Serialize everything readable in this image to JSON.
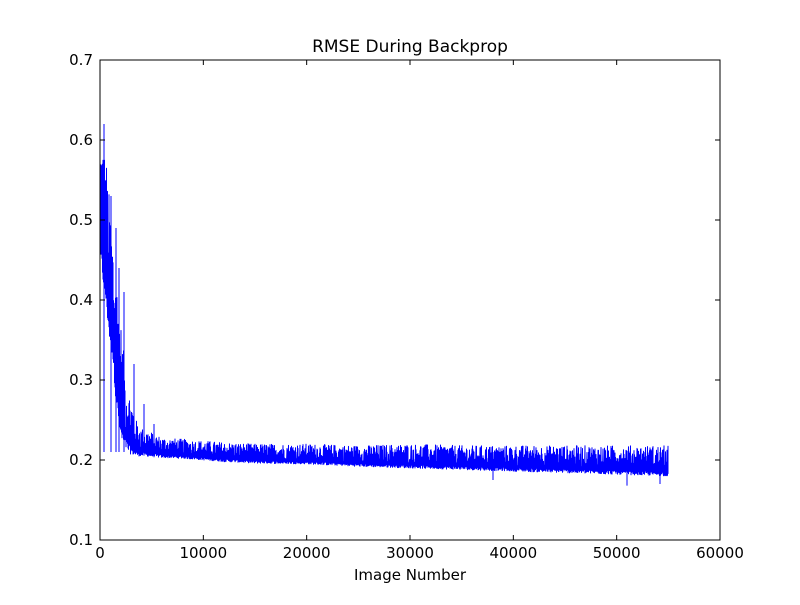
{
  "chart_data": {
    "type": "line",
    "title": "RMSE During Backprop",
    "xlabel": "Image Number",
    "ylabel": "",
    "xlim": [
      0,
      60000
    ],
    "ylim": [
      0.1,
      0.7
    ],
    "xticks": [
      0,
      10000,
      20000,
      30000,
      40000,
      50000,
      60000
    ],
    "xtick_labels": [
      "0",
      "10000",
      "20000",
      "30000",
      "40000",
      "50000",
      "60000"
    ],
    "yticks": [
      0.1,
      0.2,
      0.3,
      0.4,
      0.5,
      0.6,
      0.7
    ],
    "ytick_labels": [
      "0.1",
      "0.2",
      "0.3",
      "0.4",
      "0.5",
      "0.6",
      "0.7"
    ],
    "grid": false,
    "legend": "none",
    "series": [
      {
        "color": "#0000ff",
        "x_range": [
          0,
          55000
        ],
        "envelope": {
          "x": [
            0,
            300,
            600,
            900,
            1200,
            1500,
            1800,
            2100,
            2400,
            2700,
            3000,
            3500,
            4000,
            5000,
            6000,
            8000,
            10000,
            12000,
            15000,
            20000,
            25000,
            30000,
            35000,
            40000,
            45000,
            50000,
            55000
          ],
          "upper": [
            0.61,
            0.6,
            0.58,
            0.53,
            0.49,
            0.44,
            0.41,
            0.36,
            0.32,
            0.29,
            0.28,
            0.25,
            0.24,
            0.235,
            0.228,
            0.226,
            0.224,
            0.222,
            0.22,
            0.22,
            0.218,
            0.22,
            0.218,
            0.218,
            0.218,
            0.218,
            0.218
          ],
          "lower": [
            0.45,
            0.42,
            0.39,
            0.35,
            0.33,
            0.28,
            0.24,
            0.22,
            0.215,
            0.21,
            0.207,
            0.205,
            0.205,
            0.204,
            0.203,
            0.202,
            0.2,
            0.198,
            0.196,
            0.195,
            0.192,
            0.19,
            0.188,
            0.186,
            0.184,
            0.182,
            0.18
          ]
        },
        "spikes": [
          {
            "x": 400,
            "y": 0.62
          },
          {
            "x": 1100,
            "y": 0.53
          },
          {
            "x": 1500,
            "y": 0.49
          },
          {
            "x": 1800,
            "y": 0.44
          },
          {
            "x": 2300,
            "y": 0.41
          },
          {
            "x": 3300,
            "y": 0.32
          },
          {
            "x": 4300,
            "y": 0.27
          },
          {
            "x": 5200,
            "y": 0.245
          },
          {
            "x": 38000,
            "y": 0.175
          },
          {
            "x": 51000,
            "y": 0.168
          },
          {
            "x": 54200,
            "y": 0.17
          }
        ]
      }
    ]
  }
}
